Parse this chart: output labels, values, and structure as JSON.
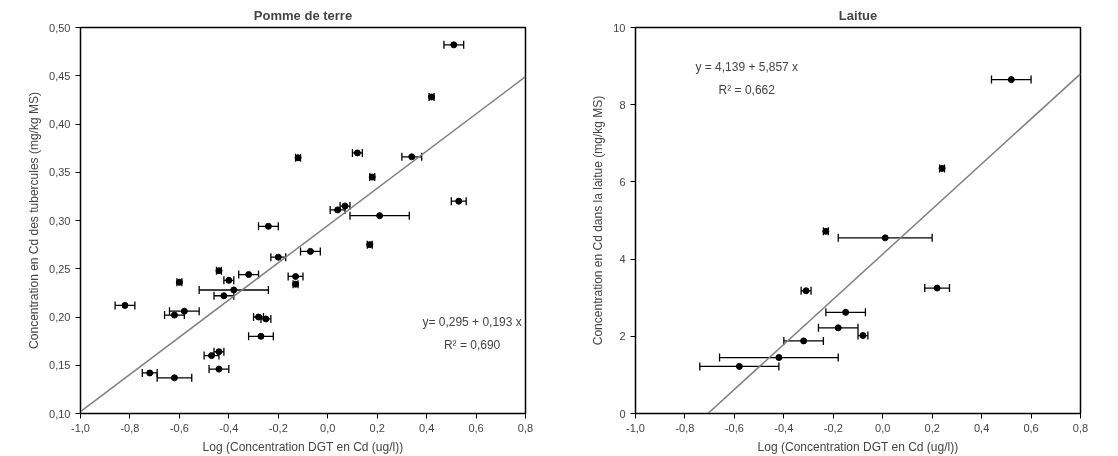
{
  "chart_data": [
    {
      "type": "scatter",
      "title": "Pomme de terre",
      "xlabel": "Log (Concentration DGT en Cd (ug/l))",
      "ylabel": "Concentration en Cd des tubercules (mg/kg MS)",
      "xlim": [
        -1.0,
        0.8
      ],
      "ylim": [
        0.1,
        0.5
      ],
      "xticks": [
        {
          "value": -1.0,
          "label": "-1,0"
        },
        {
          "value": -0.8,
          "label": "-0,8"
        },
        {
          "value": -0.6,
          "label": "-0,6"
        },
        {
          "value": -0.4,
          "label": "-0,4"
        },
        {
          "value": -0.2,
          "label": "-0,2"
        },
        {
          "value": 0.0,
          "label": "0,0"
        },
        {
          "value": 0.2,
          "label": "0,2"
        },
        {
          "value": 0.4,
          "label": "0,4"
        },
        {
          "value": 0.6,
          "label": "0,6"
        },
        {
          "value": 0.8,
          "label": "0,8"
        }
      ],
      "yticks": [
        {
          "value": 0.1,
          "label": "0,10"
        },
        {
          "value": 0.15,
          "label": "0,15"
        },
        {
          "value": 0.2,
          "label": "0,20"
        },
        {
          "value": 0.25,
          "label": "0,25"
        },
        {
          "value": 0.3,
          "label": "0,30"
        },
        {
          "value": 0.35,
          "label": "0,35"
        },
        {
          "value": 0.4,
          "label": "0,40"
        },
        {
          "value": 0.45,
          "label": "0,45"
        },
        {
          "value": 0.5,
          "label": "0,50"
        }
      ],
      "grid": false,
      "series": [
        {
          "marker": "circle",
          "color": "#000000",
          "x": [
            -0.82,
            -0.72,
            -0.62,
            -0.6,
            -0.62,
            -0.58,
            -0.47,
            -0.44,
            -0.44,
            -0.44,
            -0.42,
            -0.4,
            -0.32,
            -0.38,
            -0.28,
            -0.25,
            -0.27,
            -0.24,
            -0.2,
            -0.13,
            -0.13,
            -0.12,
            -0.07,
            0.04,
            0.07,
            0.21,
            0.12,
            0.17,
            0.18,
            0.34,
            0.42,
            0.51,
            0.53
          ],
          "values": [
            0.212,
            0.142,
            0.137,
            0.236,
            0.202,
            0.206,
            0.16,
            0.164,
            0.146,
            0.248,
            0.222,
            0.238,
            0.244,
            0.228,
            0.2,
            0.198,
            0.18,
            0.294,
            0.262,
            0.242,
            0.234,
            0.365,
            0.268,
            0.311,
            0.315,
            0.305,
            0.37,
            0.275,
            0.345,
            0.366,
            0.428,
            0.482,
            0.32
          ],
          "xerrors": [
            0.04,
            0.03,
            0.07,
            0.01,
            0.04,
            0.06,
            0.03,
            0.02,
            0.04,
            0.01,
            0.04,
            0.02,
            0.04,
            0.14,
            0.02,
            0.02,
            0.05,
            0.04,
            0.03,
            0.03,
            0.01,
            0.01,
            0.04,
            0.03,
            0.02,
            0.12,
            0.02,
            0.01,
            0.01,
            0.04,
            0.01,
            0.04,
            0.03
          ]
        },
        {
          "type": "line",
          "color": "#808080",
          "x": [
            -1.0,
            0.8
          ],
          "values": [
            0.102,
            0.449
          ]
        }
      ],
      "annotations": [
        "y= 0,295 + 0,193 x",
        "R² = 0,690"
      ]
    },
    {
      "type": "scatter",
      "title": "Laitue",
      "xlabel": "Log (Concentration DGT en Cd (ug/l))",
      "ylabel": "Concentration en Cd dans la laitue (mg/kg MS)",
      "xlim": [
        -1.0,
        0.8
      ],
      "ylim": [
        0,
        10
      ],
      "xticks": [
        {
          "value": -1.0,
          "label": "-1,0"
        },
        {
          "value": -0.8,
          "label": "-0,8"
        },
        {
          "value": -0.6,
          "label": "-0,6"
        },
        {
          "value": -0.4,
          "label": "-0,4"
        },
        {
          "value": -0.2,
          "label": "-0,2"
        },
        {
          "value": 0.0,
          "label": "0,0"
        },
        {
          "value": 0.2,
          "label": "0,2"
        },
        {
          "value": 0.4,
          "label": "0,4"
        },
        {
          "value": 0.6,
          "label": "0,6"
        },
        {
          "value": 0.8,
          "label": "0,8"
        }
      ],
      "yticks": [
        0,
        2,
        4,
        6,
        8,
        10
      ],
      "grid": false,
      "series": [
        {
          "marker": "circle",
          "color": "#000000",
          "x": [
            0.52,
            0.24,
            -0.23,
            0.01,
            -0.31,
            0.22,
            -0.15,
            -0.18,
            -0.08,
            -0.32,
            -0.42,
            -0.58
          ],
          "values": [
            8.65,
            6.35,
            4.72,
            4.55,
            3.18,
            3.25,
            2.62,
            2.22,
            2.02,
            1.88,
            1.45,
            1.22
          ],
          "xerrors": [
            0.08,
            0.01,
            0.01,
            0.19,
            0.02,
            0.05,
            0.08,
            0.08,
            0.02,
            0.08,
            0.24,
            0.16
          ]
        },
        {
          "type": "line",
          "color": "#808080",
          "x": [
            -0.707,
            0.8
          ],
          "values": [
            0,
            8.8
          ]
        }
      ],
      "annotations": [
        "y = 4,139 + 5,857 x",
        "R² = 0,662"
      ]
    }
  ]
}
